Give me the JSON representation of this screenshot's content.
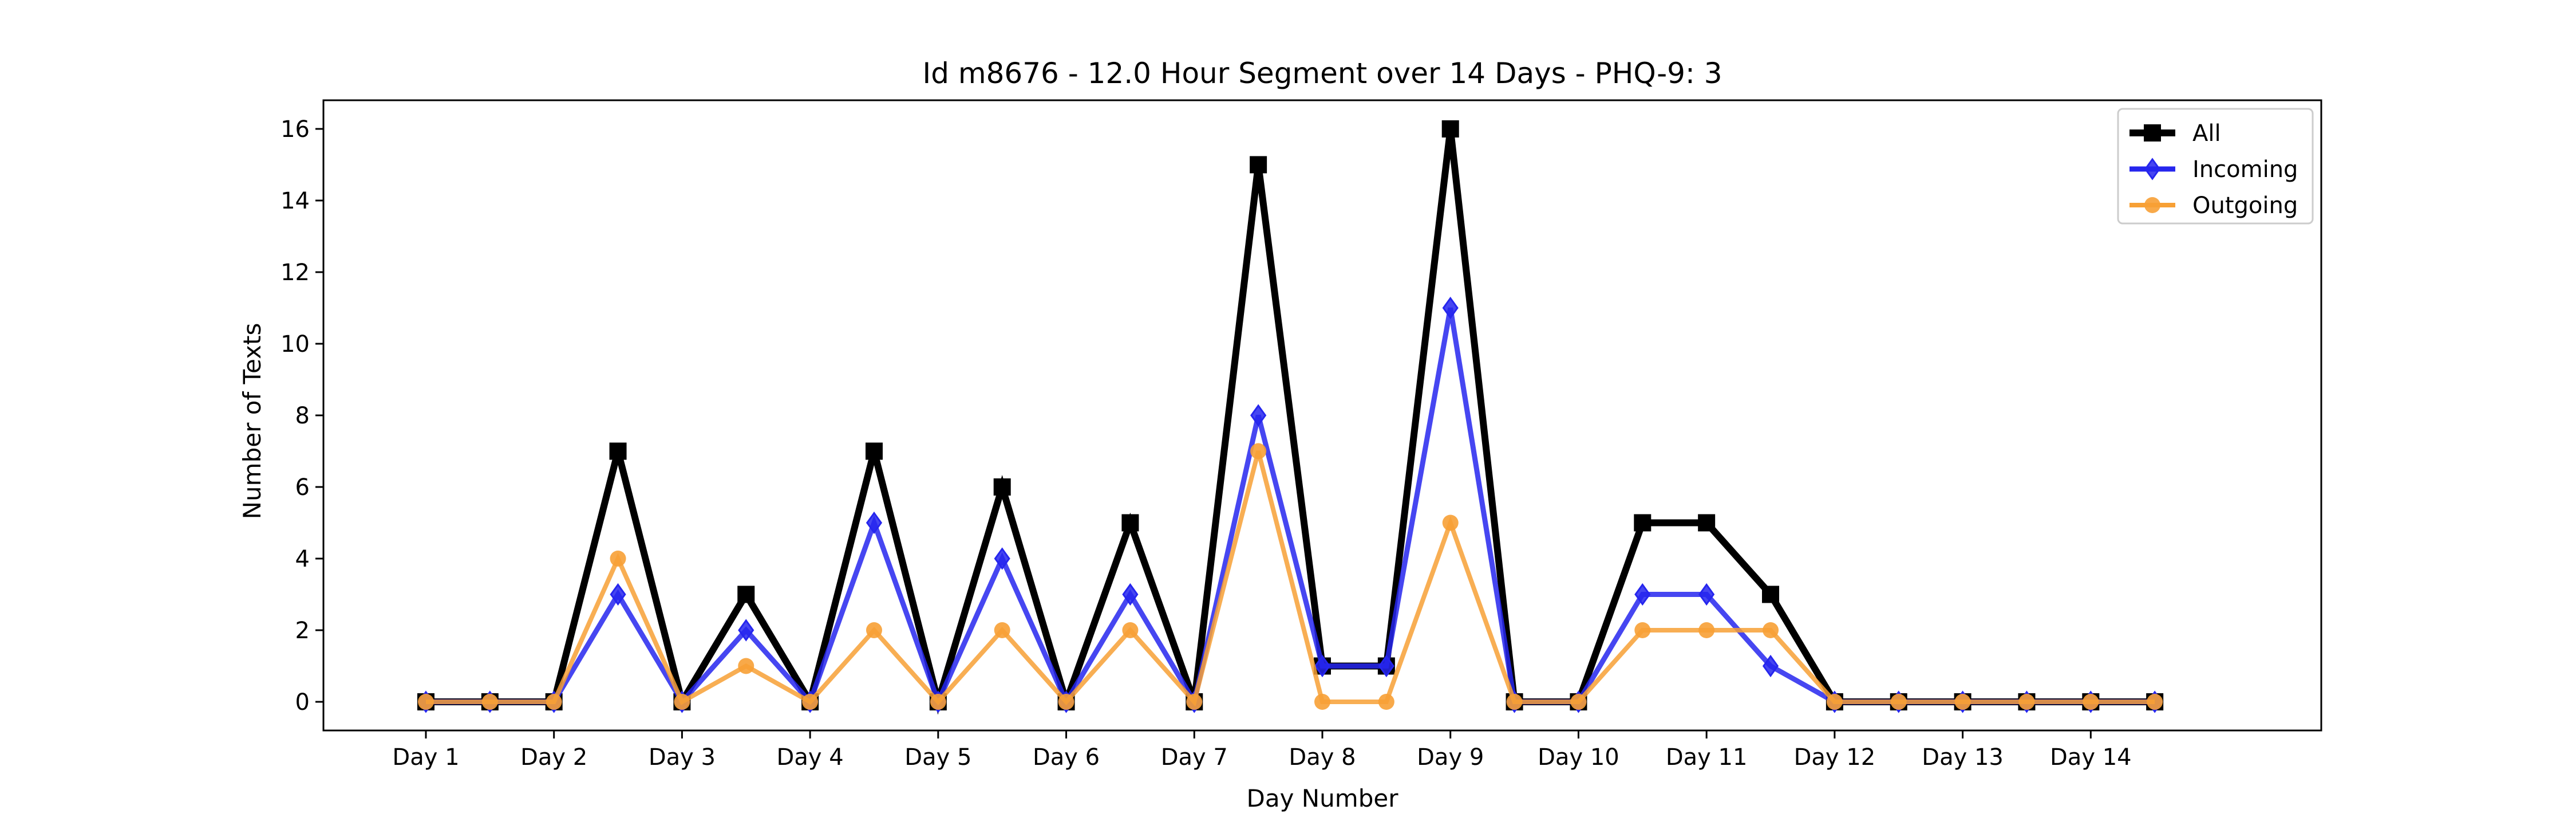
{
  "chart_data": {
    "type": "line",
    "title": "Id m8676 - 12.0 Hour Segment over 14 Days - PHQ-9: 3",
    "xlabel": "Day Number",
    "ylabel": "Number of Texts",
    "x": [
      0,
      0.5,
      1,
      1.5,
      2,
      2.5,
      3,
      3.5,
      4,
      4.5,
      5,
      5.5,
      6,
      6.5,
      7,
      7.5,
      8,
      8.5,
      9,
      9.5,
      10,
      10.5,
      11,
      11.5,
      12,
      12.5,
      13,
      13.5
    ],
    "categories": [
      "Day 1",
      "Day 2",
      "Day 3",
      "Day 4",
      "Day 5",
      "Day 6",
      "Day 7",
      "Day 8",
      "Day 9",
      "Day 10",
      "Day 11",
      "Day 12",
      "Day 13",
      "Day 14"
    ],
    "yticks": [
      0,
      2,
      4,
      6,
      8,
      10,
      12,
      14,
      16
    ],
    "xlim": [
      -0.8,
      14.8
    ],
    "ylim": [
      -0.8,
      16.8
    ],
    "grid": false,
    "legend_position": "top-right",
    "series": [
      {
        "name": "All",
        "color": "#000000",
        "marker": "square",
        "values": [
          0,
          0,
          0,
          7,
          0,
          3,
          0,
          7,
          0,
          6,
          0,
          5,
          0,
          15,
          1,
          1,
          16,
          0,
          0,
          5,
          5,
          3,
          0,
          0,
          0,
          0,
          0,
          0
        ]
      },
      {
        "name": "Incoming",
        "color": "#2626ee",
        "marker": "diamond",
        "values": [
          0,
          0,
          0,
          3,
          0,
          2,
          0,
          5,
          0,
          4,
          0,
          3,
          0,
          8,
          1,
          1,
          11,
          0,
          0,
          3,
          3,
          1,
          0,
          0,
          0,
          0,
          0,
          0
        ]
      },
      {
        "name": "Outgoing",
        "color": "#f7a035",
        "marker": "circle",
        "values": [
          0,
          0,
          0,
          4,
          0,
          1,
          0,
          2,
          0,
          2,
          0,
          2,
          0,
          7,
          0,
          0,
          5,
          0,
          0,
          2,
          2,
          2,
          0,
          0,
          0,
          0,
          0,
          0
        ]
      }
    ]
  }
}
